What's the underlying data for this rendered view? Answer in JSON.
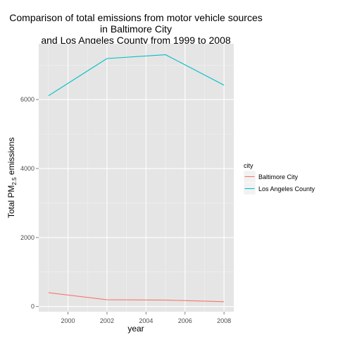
{
  "chart_data": {
    "type": "line",
    "title_lines": [
      "Comparison of total emissions from motor vehicle sources",
      "in Baltimore City",
      "and Los Angeles County from 1999 to 2008"
    ],
    "xlabel": "year",
    "ylabel_main": "Total PM",
    "ylabel_sub": "2.5",
    "ylabel_tail": " emissions",
    "x": [
      1999,
      2002,
      2005,
      2008
    ],
    "xlim": [
      1998.5,
      2008.5
    ],
    "ylim": [
      -150,
      7620
    ],
    "xticks": [
      2000,
      2002,
      2004,
      2006,
      2008
    ],
    "yticks": [
      0,
      2000,
      4000,
      6000
    ],
    "grid": true,
    "legend": {
      "title": "city",
      "placement": "right"
    },
    "series": [
      {
        "name": "Baltimore City",
        "color": "#F8766D",
        "values": [
          400,
          195,
          185,
          140
        ]
      },
      {
        "name": "Los Angeles County",
        "color": "#00BFC4",
        "values": [
          6110,
          7190,
          7300,
          6420
        ]
      }
    ]
  }
}
